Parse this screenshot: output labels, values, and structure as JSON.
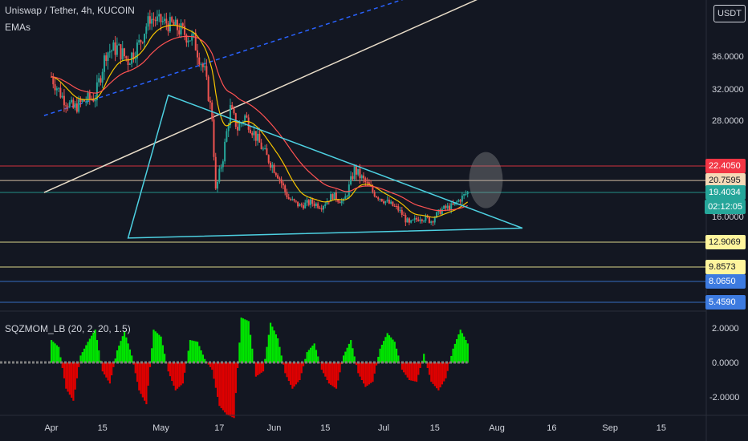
{
  "header": {
    "title": "Uniswap / Tether, 4h, KUCOIN",
    "indicator": "EMAs",
    "oscillator": "SQZMOM_LB (20, 2, 20, 1.5)",
    "currency": "USDT"
  },
  "colors": {
    "background": "#131722",
    "up": "#26a69a",
    "down": "#ef5350",
    "triangle": "#4dd0e1",
    "channel": "#e8dcc8",
    "dashed": "#2962ff",
    "ema_fast": "#f5c400",
    "ema_slow": "#ff5252",
    "mom_up": "#00e600",
    "mom_down": "#e00000"
  },
  "chart_data": {
    "type": "candlestick",
    "symbol": "Uniswap / Tether",
    "interval": "4h",
    "exchange": "KUCOIN",
    "price_axis": {
      "ticks": [
        "36.0000",
        "32.0000",
        "28.0000",
        "16.0000"
      ],
      "tick_values": [
        36,
        32,
        28,
        16
      ]
    },
    "momentum_axis": {
      "ticks": [
        "2.0000",
        "0.0000",
        "-2.0000"
      ],
      "tick_values": [
        2,
        0,
        -2
      ]
    },
    "x_axis": {
      "labels": [
        "Apr",
        "15",
        "May",
        "17",
        "Jun",
        "15",
        "Jul",
        "15",
        "Aug",
        "16",
        "Sep",
        "15"
      ],
      "day_index": [
        0,
        14,
        30,
        46,
        61,
        75,
        91,
        105,
        122,
        137,
        153,
        167
      ]
    },
    "price_tags": [
      {
        "label": "22.4050",
        "value": 22.405,
        "bg": "#f23645",
        "fg": "#ffffff",
        "line": "#f23645"
      },
      {
        "label": "20.7595",
        "value": 20.7595,
        "bg": "#f5d9b7",
        "fg": "#131722",
        "line": "#f5d9b7"
      },
      {
        "label": "19.4034",
        "value": 19.4034,
        "bg": "#26a69a",
        "fg": "#ffffff",
        "line": "#26a69a"
      },
      {
        "label": "02:12:05",
        "value": 18.7,
        "bg": "#26a69a",
        "fg": "#ffffff",
        "line": ""
      },
      {
        "label": "12.9069",
        "value": 12.9069,
        "bg": "#fff59d",
        "fg": "#131722",
        "line": "#fff59d"
      },
      {
        "label": "9.8573",
        "value": 9.8573,
        "bg": "#fff59d",
        "fg": "#131722",
        "line": "#fff59d"
      },
      {
        "label": "8.0650",
        "value": 8.065,
        "bg": "#3d7be0",
        "fg": "#ffffff",
        "line": "#3d7be0"
      },
      {
        "label": "5.4590",
        "value": 5.459,
        "bg": "#3d7be0",
        "fg": "#ffffff",
        "line": "#3d7be0"
      }
    ],
    "series": [
      {
        "name": "close",
        "day": [
          0,
          3,
          6,
          9,
          12,
          15,
          18,
          21,
          24,
          27,
          30,
          33,
          36,
          39,
          42,
          44,
          45,
          47,
          49,
          51,
          53,
          56,
          59,
          62,
          65,
          68,
          71,
          74,
          77,
          80,
          83,
          86,
          89,
          92,
          95,
          98,
          101,
          104,
          107,
          110,
          112,
          114
        ],
        "value": [
          33.5,
          31.0,
          29.5,
          30.5,
          31.0,
          36.5,
          37.0,
          35.5,
          37.5,
          41.0,
          40.5,
          40.0,
          39.0,
          38.0,
          34.0,
          28.5,
          19.5,
          23.5,
          29.5,
          27.0,
          28.5,
          26.0,
          23.5,
          21.5,
          18.5,
          17.5,
          18.0,
          17.5,
          19.0,
          18.0,
          22.0,
          20.5,
          19.0,
          18.0,
          17.0,
          15.0,
          16.0,
          15.5,
          17.0,
          17.5,
          18.5,
          19.4
        ]
      },
      {
        "name": "momentum",
        "day": [
          0,
          2,
          4,
          6,
          8,
          10,
          12,
          14,
          16,
          18,
          20,
          22,
          24,
          26,
          28,
          30,
          32,
          34,
          36,
          38,
          40,
          42,
          44,
          46,
          48,
          50,
          52,
          54,
          56,
          58,
          60,
          62,
          64,
          66,
          68,
          70,
          72,
          74,
          76,
          78,
          80,
          82,
          84,
          86,
          88,
          90,
          92,
          94,
          96,
          98,
          100,
          102,
          104,
          106,
          108,
          110,
          112,
          114
        ],
        "value": [
          1.3,
          0.9,
          -1.5,
          -2.2,
          0.4,
          1.2,
          1.9,
          -0.5,
          -1.2,
          0.7,
          1.8,
          0.4,
          -1.6,
          -2.4,
          1.9,
          1.5,
          -0.5,
          -1.6,
          -1.2,
          1.3,
          1.2,
          0.2,
          -0.4,
          -2.5,
          -3.0,
          -3.2,
          2.6,
          2.4,
          -0.8,
          -0.5,
          2.3,
          1.4,
          -0.6,
          -1.5,
          -1.0,
          0.6,
          1.1,
          -0.4,
          -1.2,
          -1.5,
          0.4,
          1.3,
          -0.6,
          -1.4,
          -1.1,
          0.8,
          1.7,
          1.2,
          -0.4,
          -1.0,
          -1.1,
          0.5,
          -1.1,
          -1.6,
          -0.9,
          0.8,
          1.9,
          1.1
        ]
      }
    ],
    "triangle": {
      "apex_day": 32,
      "apex_price": 31.2,
      "base_day": 21,
      "base_price": 13.4,
      "tip_day": 129,
      "tip_price": 14.6,
      "lower_right_day": 112,
      "lower_right_price": 14.0
    },
    "channel_line": {
      "from": [
        -2,
        19.4
      ],
      "to": [
        136,
        50.0
      ]
    },
    "dashed_line": {
      "from": [
        -2,
        28.6
      ],
      "to": [
        123,
        50.0
      ]
    },
    "grid": false,
    "legend": "none"
  }
}
